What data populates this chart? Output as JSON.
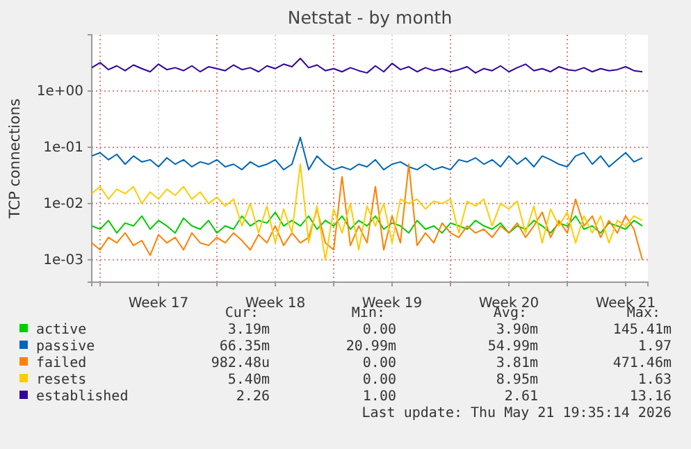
{
  "chart_data": {
    "type": "line",
    "title": "Netstat - by month",
    "ylabel": "TCP connections",
    "x": [
      "2026-04-19T12:00",
      "2026-04-20T00:00",
      "2026-04-20T12:00",
      "2026-04-21T00:00",
      "2026-04-21T12:00",
      "2026-04-22T00:00",
      "2026-04-22T12:00",
      "2026-04-23T00:00",
      "2026-04-23T12:00",
      "2026-04-24T00:00",
      "2026-04-24T12:00",
      "2026-04-25T00:00",
      "2026-04-25T12:00",
      "2026-04-26T00:00",
      "2026-04-26T12:00",
      "2026-04-27T00:00",
      "2026-04-27T12:00",
      "2026-04-28T00:00",
      "2026-04-28T12:00",
      "2026-04-29T00:00",
      "2026-04-29T12:00",
      "2026-04-30T00:00",
      "2026-04-30T12:00",
      "2026-05-01T00:00",
      "2026-05-01T12:00",
      "2026-05-02T00:00",
      "2026-05-02T12:00",
      "2026-05-03T00:00",
      "2026-05-03T12:00",
      "2026-05-04T00:00",
      "2026-05-04T12:00",
      "2026-05-05T00:00",
      "2026-05-05T12:00",
      "2026-05-06T00:00",
      "2026-05-06T12:00",
      "2026-05-07T00:00",
      "2026-05-07T12:00",
      "2026-05-08T00:00",
      "2026-05-08T12:00",
      "2026-05-09T00:00",
      "2026-05-09T12:00",
      "2026-05-10T00:00",
      "2026-05-10T12:00",
      "2026-05-11T00:00",
      "2026-05-11T12:00",
      "2026-05-12T00:00",
      "2026-05-12T12:00",
      "2026-05-13T00:00",
      "2026-05-13T12:00",
      "2026-05-14T00:00",
      "2026-05-14T12:00",
      "2026-05-15T00:00",
      "2026-05-15T12:00",
      "2026-05-16T00:00",
      "2026-05-16T12:00",
      "2026-05-17T00:00",
      "2026-05-17T12:00",
      "2026-05-18T00:00",
      "2026-05-18T12:00",
      "2026-05-19T00:00",
      "2026-05-19T12:00",
      "2026-05-20T00:00",
      "2026-05-20T12:00",
      "2026-05-21T00:00",
      "2026-05-21T12:00",
      "2026-05-22T00:00",
      "2026-05-22T12:00"
    ],
    "series": [
      {
        "name": "active",
        "color": "#00cc00",
        "values": [
          0.004,
          0.0035,
          0.005,
          0.003,
          0.0045,
          0.004,
          0.006,
          0.0035,
          0.005,
          0.004,
          0.003,
          0.0055,
          0.004,
          0.0035,
          0.005,
          0.003,
          0.004,
          0.0035,
          0.006,
          0.004,
          0.005,
          0.0045,
          0.007,
          0.004,
          0.005,
          0.004,
          0.006,
          0.0035,
          0.005,
          0.004,
          0.006,
          0.0035,
          0.005,
          0.004,
          0.006,
          0.0035,
          0.0045,
          0.004,
          0.003,
          0.005,
          0.0035,
          0.004,
          0.003,
          0.0045,
          0.004,
          0.0035,
          0.005,
          0.004,
          0.0035,
          0.0045,
          0.003,
          0.004,
          0.0035,
          0.005,
          0.004,
          0.003,
          0.0045,
          0.004,
          0.006,
          0.0035,
          0.004,
          0.003,
          0.0045,
          0.004,
          0.0035,
          0.005,
          0.004
        ]
      },
      {
        "name": "passive",
        "color": "#0066b3",
        "values": [
          0.07,
          0.08,
          0.06,
          0.075,
          0.05,
          0.07,
          0.055,
          0.06,
          0.045,
          0.065,
          0.05,
          0.06,
          0.045,
          0.055,
          0.05,
          0.06,
          0.045,
          0.05,
          0.04,
          0.055,
          0.045,
          0.05,
          0.06,
          0.04,
          0.05,
          0.15,
          0.04,
          0.07,
          0.05,
          0.04,
          0.045,
          0.04,
          0.05,
          0.045,
          0.06,
          0.04,
          0.05,
          0.055,
          0.045,
          0.04,
          0.05,
          0.04,
          0.045,
          0.04,
          0.06,
          0.055,
          0.065,
          0.05,
          0.06,
          0.045,
          0.07,
          0.05,
          0.065,
          0.045,
          0.07,
          0.06,
          0.05,
          0.045,
          0.07,
          0.08,
          0.05,
          0.07,
          0.045,
          0.06,
          0.08,
          0.055,
          0.065
        ]
      },
      {
        "name": "failed",
        "color": "#ff8000",
        "values": [
          0.002,
          0.0015,
          0.0025,
          0.002,
          0.003,
          0.0018,
          0.0022,
          0.0012,
          0.0028,
          0.002,
          0.0025,
          0.0015,
          0.003,
          0.002,
          0.0018,
          0.0025,
          0.002,
          0.003,
          0.0022,
          0.0015,
          0.0028,
          0.002,
          0.004,
          0.0018,
          0.003,
          0.002,
          0.0025,
          0.008,
          0.002,
          0.0015,
          0.03,
          0.0018,
          0.004,
          0.002,
          0.02,
          0.0015,
          0.006,
          0.002,
          0.05,
          0.0018,
          0.003,
          0.002,
          0.0045,
          0.003,
          0.0025,
          0.004,
          0.003,
          0.0035,
          0.0025,
          0.004,
          0.003,
          0.0045,
          0.0025,
          0.004,
          0.007,
          0.0025,
          0.005,
          0.003,
          0.012,
          0.004,
          0.006,
          0.0025,
          0.005,
          0.003,
          0.006,
          0.0035,
          0.001
        ]
      },
      {
        "name": "resets",
        "color": "#ffcc00",
        "values": [
          0.015,
          0.02,
          0.012,
          0.018,
          0.015,
          0.02,
          0.01,
          0.016,
          0.012,
          0.018,
          0.014,
          0.02,
          0.012,
          0.016,
          0.01,
          0.013,
          0.009,
          0.012,
          0.004,
          0.01,
          0.003,
          0.009,
          0.002,
          0.008,
          0.003,
          0.05,
          0.002,
          0.009,
          0.001,
          0.008,
          0.003,
          0.01,
          0.0015,
          0.009,
          0.004,
          0.01,
          0.002,
          0.012,
          0.01,
          0.012,
          0.008,
          0.011,
          0.01,
          0.012,
          0.003,
          0.011,
          0.009,
          0.012,
          0.004,
          0.01,
          0.008,
          0.011,
          0.003,
          0.009,
          0.002,
          0.008,
          0.004,
          0.007,
          0.002,
          0.006,
          0.003,
          0.006,
          0.002,
          0.005,
          0.004,
          0.006,
          0.005
        ]
      },
      {
        "name": "established",
        "color": "#330099",
        "values": [
          2.6,
          3.2,
          2.4,
          2.8,
          2.3,
          2.9,
          2.5,
          2.2,
          3.0,
          2.4,
          2.6,
          2.3,
          2.8,
          2.2,
          2.7,
          2.5,
          2.3,
          2.9,
          2.4,
          2.6,
          2.2,
          2.8,
          2.5,
          3.0,
          2.7,
          3.8,
          2.6,
          2.9,
          2.3,
          2.5,
          2.2,
          2.6,
          2.3,
          2.1,
          2.8,
          2.2,
          3.1,
          2.4,
          2.7,
          2.2,
          2.6,
          2.3,
          2.5,
          2.2,
          2.4,
          2.7,
          2.1,
          2.5,
          2.3,
          2.8,
          2.2,
          2.6,
          3.0,
          2.3,
          2.5,
          2.2,
          2.7,
          2.4,
          2.3,
          2.6,
          2.2,
          2.5,
          2.3,
          2.4,
          2.7,
          2.3,
          2.2
        ]
      }
    ],
    "log": true,
    "ylim": [
      0.0004,
      10
    ],
    "yticks": [
      {
        "value": 0.001,
        "label": "1e-03"
      },
      {
        "value": 0.01,
        "label": "1e-02"
      },
      {
        "value": 0.1,
        "label": "1e-01"
      },
      {
        "value": 1,
        "label": "1e+00"
      }
    ],
    "xlim": [
      "2026-04-19T12:00",
      "2026-05-22T20:00"
    ],
    "xticks": [
      {
        "value": "2026-04-20T00:00",
        "label": null
      },
      {
        "value": "2026-04-23T12:00",
        "label": "Week 17"
      },
      {
        "value": "2026-04-27T00:00",
        "label": null
      },
      {
        "value": "2026-04-30T12:00",
        "label": "Week 18"
      },
      {
        "value": "2026-05-04T00:00",
        "label": null
      },
      {
        "value": "2026-05-07T12:00",
        "label": "Week 19"
      },
      {
        "value": "2026-05-11T00:00",
        "label": null
      },
      {
        "value": "2026-05-14T12:00",
        "label": "Week 20"
      },
      {
        "value": "2026-05-18T00:00",
        "label": null
      },
      {
        "value": "2026-05-21T12:00",
        "label": "Week 21"
      }
    ],
    "grid": true,
    "legend": "bottom",
    "annotations": [
      "Cur:",
      "Min:",
      "Avg:",
      "Max:",
      "3.19m",
      "0.00",
      "3.90m",
      "145.41m",
      "66.35m",
      "20.99m",
      "54.99m",
      "1.97",
      "982.48u",
      "0.00",
      "3.81m",
      "471.46m",
      "5.40m",
      "0.00",
      "8.95m",
      "1.63",
      "2.26",
      "1.00",
      "2.61",
      "13.16",
      "Last update: Thu May 21 19:35:14 2026"
    ]
  }
}
